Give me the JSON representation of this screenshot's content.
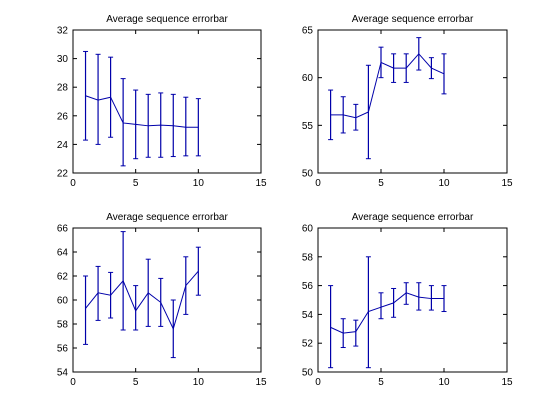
{
  "chart_data": [
    {
      "type": "line",
      "title": "Average sequence errorbar",
      "xlim": [
        0,
        15
      ],
      "ylim": [
        22,
        32
      ],
      "xticks": [
        0,
        5,
        10,
        15
      ],
      "yticks": [
        22,
        24,
        26,
        28,
        30,
        32
      ],
      "grid": false,
      "color": "#0000aa",
      "series": [
        {
          "x": [
            1,
            2,
            3,
            4,
            5,
            6,
            7,
            8,
            9,
            10
          ],
          "y": [
            27.4,
            27.1,
            27.3,
            25.5,
            25.4,
            25.3,
            25.35,
            25.3,
            25.2,
            25.2
          ],
          "lower": [
            24.3,
            24.0,
            24.5,
            22.5,
            23.0,
            23.1,
            23.1,
            23.15,
            23.2,
            23.2
          ],
          "upper": [
            30.5,
            30.3,
            30.1,
            28.6,
            27.8,
            27.5,
            27.6,
            27.5,
            27.3,
            27.2
          ]
        }
      ]
    },
    {
      "type": "line",
      "title": "Average sequence errorbar",
      "xlim": [
        0,
        15
      ],
      "ylim": [
        50,
        65
      ],
      "xticks": [
        0,
        5,
        10,
        15
      ],
      "yticks": [
        50,
        55,
        60,
        65
      ],
      "grid": false,
      "color": "#0000aa",
      "series": [
        {
          "x": [
            1,
            2,
            3,
            4,
            5,
            6,
            7,
            8,
            9,
            10
          ],
          "y": [
            56.1,
            56.1,
            55.8,
            56.4,
            61.6,
            61.0,
            61.0,
            62.5,
            61.0,
            60.4
          ],
          "lower": [
            53.5,
            54.2,
            54.5,
            51.5,
            60.0,
            59.5,
            59.5,
            60.8,
            59.9,
            58.3
          ],
          "upper": [
            58.7,
            58.0,
            57.2,
            61.3,
            63.2,
            62.5,
            62.5,
            64.2,
            62.1,
            62.5
          ]
        }
      ]
    },
    {
      "type": "line",
      "title": "Average sequence errorbar",
      "xlim": [
        0,
        15
      ],
      "ylim": [
        54,
        66
      ],
      "xticks": [
        0,
        5,
        10,
        15
      ],
      "yticks": [
        54,
        56,
        58,
        60,
        62,
        64,
        66
      ],
      "grid": false,
      "color": "#0000aa",
      "series": [
        {
          "x": [
            1,
            2,
            3,
            4,
            5,
            6,
            7,
            8,
            9,
            10
          ],
          "y": [
            59.3,
            60.6,
            60.4,
            61.6,
            59.1,
            60.6,
            59.8,
            57.6,
            61.2,
            62.4
          ],
          "lower": [
            56.3,
            58.3,
            58.5,
            57.5,
            57.5,
            57.8,
            57.8,
            55.2,
            58.8,
            60.4
          ],
          "upper": [
            62.0,
            62.8,
            62.3,
            65.7,
            61.2,
            63.4,
            61.8,
            60.0,
            63.6,
            64.4
          ]
        }
      ]
    },
    {
      "type": "line",
      "title": "Average sequence errorbar",
      "xlim": [
        0,
        15
      ],
      "ylim": [
        50,
        60
      ],
      "xticks": [
        0,
        5,
        10,
        15
      ],
      "yticks": [
        50,
        52,
        54,
        56,
        58,
        60
      ],
      "grid": false,
      "color": "#0000aa",
      "series": [
        {
          "x": [
            1,
            2,
            3,
            4,
            5,
            6,
            7,
            8,
            9,
            10
          ],
          "y": [
            53.1,
            52.7,
            52.8,
            54.2,
            54.5,
            54.8,
            55.5,
            55.2,
            55.1,
            55.1
          ],
          "lower": [
            50.3,
            51.7,
            51.8,
            50.3,
            53.7,
            53.8,
            54.7,
            54.3,
            54.3,
            54.2
          ],
          "upper": [
            56.0,
            53.7,
            53.6,
            58.0,
            55.5,
            55.8,
            56.2,
            56.2,
            56.0,
            56.0
          ]
        }
      ]
    }
  ]
}
